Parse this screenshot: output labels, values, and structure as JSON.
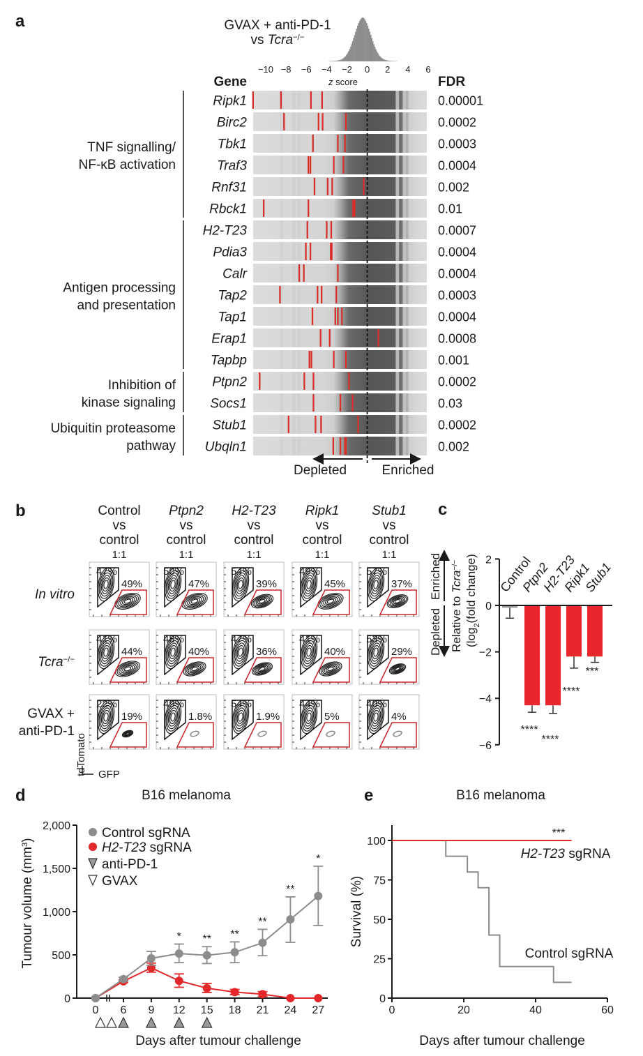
{
  "panel_labels": {
    "a": "a",
    "b": "b",
    "c": "c",
    "d": "d",
    "e": "e"
  },
  "colors": {
    "red": "#e0282b",
    "grey": "#8a8a8a",
    "black": "#1a1a1a"
  },
  "chart_data": [
    {
      "panel": "a",
      "type": "rug",
      "title_line1": "GVAX + anti-PD-1",
      "title_line2_prefix": "vs ",
      "title_line2_gene": "Tcra",
      "title_line2_sup": "−/−",
      "xlabel_italic": "z",
      "xlabel": " score",
      "xlim": [
        -11.5,
        6.5
      ],
      "xticks": [
        -10,
        -8,
        -6,
        -4,
        -2,
        0,
        2,
        4,
        6
      ],
      "xtick_labels": [
        "−10",
        "−8",
        "−6",
        "−4",
        "−2",
        "0",
        "2",
        "4",
        "6"
      ],
      "histogram": {
        "center": -0.5,
        "sd": 0.8
      },
      "gene_header": "Gene",
      "fdr_header": "FDR",
      "depleted_label": "Depleted",
      "enriched_label": "Enriched",
      "groups": [
        {
          "label_lines": [
            "TNF signalling/",
            "NF-κB activation"
          ],
          "genes": [
            {
              "name": "Ripk1",
              "z": [
                -11.25,
                -8.5,
                -5.55,
                -4.45
              ],
              "fdr": "0.00001"
            },
            {
              "name": "Birc2",
              "z": [
                -8.2,
                -4.8,
                -4.4,
                -2.1
              ],
              "fdr": "0.0002"
            },
            {
              "name": "Tbk1",
              "z": [
                -5.35,
                -2.9,
                -2.2
              ],
              "fdr": "0.0003"
            },
            {
              "name": "Traf3",
              "z": [
                -5.8,
                -5.6,
                -3.3,
                -2.35
              ],
              "fdr": "0.0004"
            },
            {
              "name": "Rnf31",
              "z": [
                -5.2,
                -3.9,
                -3.45,
                -0.35
              ],
              "fdr": "0.002"
            },
            {
              "name": "Rbck1",
              "z": [
                -10.2,
                -5.8,
                -1.4,
                -1.25
              ],
              "fdr": "0.01"
            }
          ]
        },
        {
          "label_lines": [
            "Antigen processing",
            "and presentation"
          ],
          "genes": [
            {
              "name": "H2-T23",
              "z": [
                -5.9,
                -4.0,
                -3.55
              ],
              "fdr": "0.0007"
            },
            {
              "name": "Pdia3",
              "z": [
                -6.05,
                -5.6,
                -3.6,
                -3.5
              ],
              "fdr": "0.0004"
            },
            {
              "name": "Calr",
              "z": [
                -6.7,
                -6.25,
                -2.9
              ],
              "fdr": "0.0004"
            },
            {
              "name": "Tap2",
              "z": [
                -8.6,
                -4.9,
                -4.5,
                -3.05
              ],
              "fdr": "0.0003"
            },
            {
              "name": "Tap1",
              "z": [
                -5.4,
                -3.15,
                -2.9,
                -2.5
              ],
              "fdr": "0.0004"
            },
            {
              "name": "Erap1",
              "z": [
                -4.6,
                -3.7,
                1.1
              ],
              "fdr": "0.0008"
            },
            {
              "name": "Tapbp",
              "z": [
                -5.7,
                -5.5,
                -3.3,
                -2.1
              ],
              "fdr": "0.001"
            }
          ]
        },
        {
          "label_lines": [
            "Inhibition of",
            "kinase signaling"
          ],
          "genes": [
            {
              "name": "Ptpn2",
              "z": [
                -10.6,
                -6.2,
                -5.3,
                -1.8
              ],
              "fdr": "0.0002"
            },
            {
              "name": "Socs1",
              "z": [
                -5.3,
                -2.65,
                -1.45
              ],
              "fdr": "0.03"
            }
          ]
        },
        {
          "label_lines": [
            "Ubiquitin proteasome",
            "pathway"
          ],
          "genes": [
            {
              "name": "Stub1",
              "z": [
                -7.75,
                -5.1,
                -4.55,
                -0.9
              ],
              "fdr": "0.0002"
            },
            {
              "name": "Ubqln1",
              "z": [
                -3.35,
                -2.65,
                -2.2,
                -2.1
              ],
              "fdr": "0.002"
            }
          ]
        }
      ]
    },
    {
      "panel": "b",
      "type": "flow_cytometry_grid",
      "columns": [
        {
          "gene": "Control",
          "italic": false,
          "vs": "vs",
          "control": "control",
          "ratio": "1:1"
        },
        {
          "gene": "Ptpn2",
          "italic": true,
          "vs": "vs",
          "control": "control",
          "ratio": "1:1"
        },
        {
          "gene": "H2-T23",
          "italic": true,
          "vs": "vs",
          "control": "control",
          "ratio": "1:1"
        },
        {
          "gene": "Ripk1",
          "italic": true,
          "vs": "vs",
          "control": "control",
          "ratio": "1:1"
        },
        {
          "gene": "Stub1",
          "italic": true,
          "vs": "vs",
          "control": "control",
          "ratio": "1:1"
        }
      ],
      "rows": [
        {
          "label": "In vitro",
          "italic": true,
          "sup": "",
          "cells": [
            {
              "black": "47%",
              "red": "49%",
              "red_frac": 0.49
            },
            {
              "black": "50%",
              "red": "47%",
              "red_frac": 0.47
            },
            {
              "black": "54%",
              "red": "39%",
              "red_frac": 0.39
            },
            {
              "black": "49%",
              "red": "45%",
              "red_frac": 0.45
            },
            {
              "black": "57%",
              "red": "37%",
              "red_frac": 0.37
            }
          ]
        },
        {
          "label": "Tcra",
          "italic": true,
          "sup": "−/−",
          "cells": [
            {
              "black": "41%",
              "red": "44%",
              "red_frac": 0.44
            },
            {
              "black": "48%",
              "red": "40%",
              "red_frac": 0.4
            },
            {
              "black": "47%",
              "red": "36%",
              "red_frac": 0.36
            },
            {
              "black": "41%",
              "red": "40%",
              "red_frac": 0.4
            },
            {
              "black": "53%",
              "red": "29%",
              "red_frac": 0.29
            }
          ]
        },
        {
          "label": "GVAX +",
          "label2": "anti-PD-1",
          "italic": false,
          "sup": "",
          "cells": [
            {
              "black": "22%",
              "red": "19%",
              "red_frac": 0.19
            },
            {
              "black": "49%",
              "red": "1.8%",
              "red_frac": 0.018
            },
            {
              "black": "54%",
              "red": "1.9%",
              "red_frac": 0.019
            },
            {
              "black": "44%",
              "red": "5%",
              "red_frac": 0.05
            },
            {
              "black": "40%",
              "red": "4%",
              "red_frac": 0.04
            }
          ]
        }
      ],
      "ylabel": "tdTomato",
      "xlabel": "GFP"
    },
    {
      "panel": "c",
      "type": "bar",
      "categories": [
        "Control",
        "Ptpn2",
        "H2-T23",
        "Ripk1",
        "Stub1"
      ],
      "values": [
        -0.1,
        -4.3,
        -4.3,
        -2.2,
        -2.2
      ],
      "errors_low": [
        -0.55,
        -4.6,
        -4.65,
        -2.7,
        -2.45
      ],
      "significance": [
        "",
        "****",
        "****",
        "****",
        "***"
      ],
      "ylim": [
        -6,
        2
      ],
      "yticks": [
        2,
        0,
        -2,
        -4,
        -6
      ],
      "ytick_labels": [
        "2",
        "0",
        "−2",
        "−4",
        "−6"
      ],
      "side_label_depleted": "Depleted",
      "side_label_enriched": "Enriched",
      "ylabel_line1_prefix": "Relative to ",
      "ylabel_line1_gene": "Tcra",
      "ylabel_line1_sup": "−/−",
      "ylabel_line2_a": "(log",
      "ylabel_line2_sub": "2",
      "ylabel_line2_b": "(fold change)"
    },
    {
      "panel": "d",
      "type": "line",
      "title": "B16 melanoma",
      "xlabel": "Days after tumour challenge",
      "ylabel": "Tumour volume (mm",
      "ylabel_sup": "3",
      "ylabel_end": ")",
      "x": [
        0,
        6,
        9,
        12,
        15,
        18,
        21,
        24,
        27
      ],
      "xtick_labels": [
        "0",
        "6",
        "9",
        "12",
        "15",
        "18",
        "21",
        "24",
        "27"
      ],
      "ylim": [
        0,
        2000
      ],
      "yticks": [
        0,
        500,
        1000,
        1500,
        2000
      ],
      "ytick_labels": [
        "0",
        "500",
        "1,000",
        "1,500",
        "2,000"
      ],
      "series": [
        {
          "name": "Control sgRNA",
          "italic_part": "",
          "values": [
            0,
            220,
            460,
            515,
            495,
            530,
            640,
            910,
            1180
          ],
          "err_low": [
            0,
            200,
            380,
            410,
            400,
            410,
            490,
            645,
            840
          ],
          "err_high": [
            0,
            240,
            540,
            625,
            595,
            650,
            795,
            1170,
            1525
          ]
        },
        {
          "name": " sgRNA",
          "italic_part": "H2-T23",
          "values": [
            0,
            195,
            350,
            200,
            115,
            70,
            45,
            0,
            0
          ],
          "err_low": [
            0,
            180,
            300,
            125,
            65,
            40,
            20,
            0,
            0
          ],
          "err_high": [
            0,
            210,
            405,
            280,
            170,
            100,
            75,
            0,
            0
          ]
        }
      ],
      "significance": [
        {
          "x": 12,
          "label": "*"
        },
        {
          "x": 15,
          "label": "**"
        },
        {
          "x": 18,
          "label": "**"
        },
        {
          "x": 21,
          "label": "**"
        },
        {
          "x": 24,
          "label": "**"
        },
        {
          "x": 27,
          "label": "*"
        }
      ],
      "treatments": {
        "gvax_days": [
          1,
          3
        ],
        "anti_pd1_days": [
          6,
          9,
          12,
          15
        ]
      },
      "legend_antipd1": "anti-PD-1",
      "legend_gvax": "GVAX"
    },
    {
      "panel": "e",
      "type": "line",
      "subtype": "survival_step",
      "title": "B16 melanoma",
      "xlabel": "Days after tumour challenge",
      "ylabel": "Survival (%)",
      "xlim": [
        0,
        60
      ],
      "xticks": [
        0,
        20,
        40,
        60
      ],
      "xtick_labels": [
        "0",
        "20",
        "40",
        "60"
      ],
      "ylim": [
        0,
        100
      ],
      "yticks": [
        0,
        25,
        50,
        75,
        100
      ],
      "ytick_labels": [
        "0",
        "25",
        "50",
        "75",
        "100"
      ],
      "series": [
        {
          "name": "Control sgRNA",
          "steps": [
            [
              0,
              100
            ],
            [
              15,
              90
            ],
            [
              21,
              80
            ],
            [
              24,
              70
            ],
            [
              27,
              40
            ],
            [
              30,
              20
            ],
            [
              45,
              10
            ],
            [
              50,
              10
            ]
          ]
        },
        {
          "name": " sgRNA",
          "italic_part": "H2-T23",
          "steps": [
            [
              0,
              100
            ],
            [
              50,
              100
            ]
          ]
        }
      ],
      "significance": "***"
    }
  ]
}
